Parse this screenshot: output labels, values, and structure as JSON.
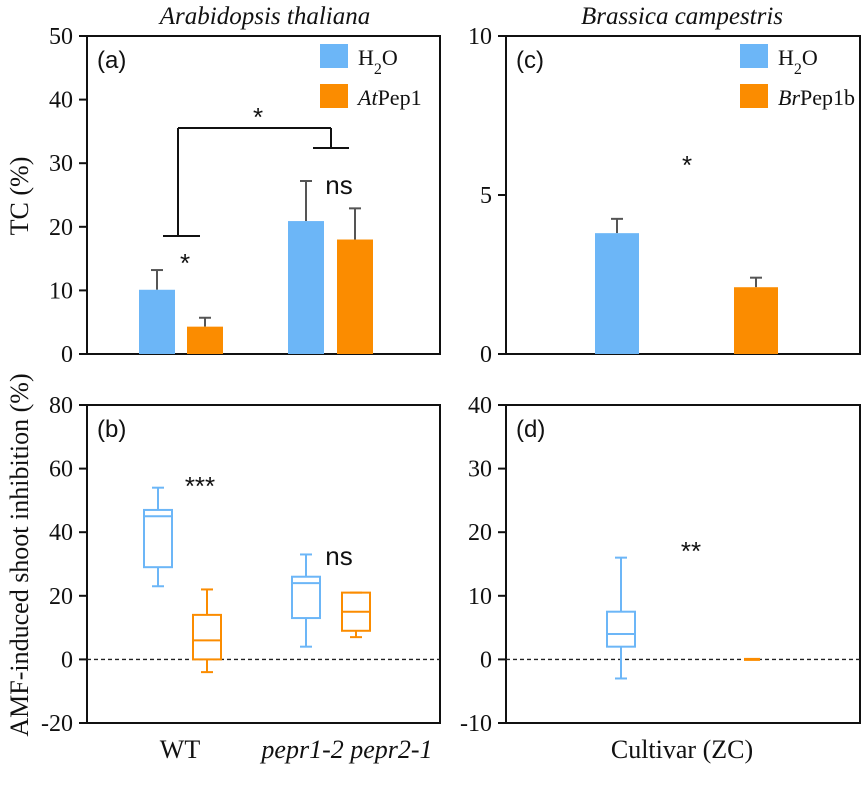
{
  "colors": {
    "control": "#6cb6f7",
    "treatment": "#fb8c00",
    "axis": "#111111",
    "error": "#555555"
  },
  "titles": {
    "left": "Arabidopsis thaliana",
    "right": "Brassica campestris"
  },
  "labels": {
    "ylabel_top": "TC (%)",
    "ylabel_bottom": "AMF-induced shoot inhibition (%)",
    "cat_wt": "WT",
    "cat_mutant": "pepr1-2 pepr2-1",
    "cat_cultivar": "Cultivar (ZC)"
  },
  "chart_data": [
    {
      "panel": "a",
      "type": "bar",
      "letter": "(a)",
      "ylim": [
        0,
        50
      ],
      "yticks": [
        "0",
        "10",
        "20",
        "30",
        "40",
        "50"
      ],
      "categories": [
        "WT",
        "pepr1-2 pepr2-1"
      ],
      "legend": {
        "control": "H2O",
        "treatment_italic": "At",
        "treatment_rest": "Pep1",
        "position": "top-right"
      },
      "series": [
        {
          "name": "H2O",
          "values": [
            10.1,
            20.9
          ],
          "errors": [
            3.1,
            6.3
          ]
        },
        {
          "name": "AtPep1",
          "values": [
            4.3,
            18.0
          ],
          "errors": [
            1.4,
            4.9
          ]
        }
      ],
      "annotations": {
        "wt": "*",
        "mutant": "ns",
        "between": "*"
      }
    },
    {
      "panel": "c",
      "type": "bar",
      "letter": "(c)",
      "ylim": [
        0,
        10
      ],
      "yticks": [
        "0",
        "5",
        "10"
      ],
      "categories": [
        "Cultivar (ZC)"
      ],
      "legend": {
        "control": "H2O",
        "treatment_italic": "Br",
        "treatment_rest": "Pep1b",
        "position": "top-right"
      },
      "series": [
        {
          "name": "H2O",
          "values": [
            3.8
          ],
          "errors": [
            0.45
          ]
        },
        {
          "name": "BrPep1b",
          "values": [
            2.1
          ],
          "errors": [
            0.3
          ]
        }
      ],
      "annotations": {
        "main": "*"
      }
    },
    {
      "panel": "b",
      "type": "box",
      "letter": "(b)",
      "ylim": [
        -20,
        80
      ],
      "yticks": [
        "-20",
        "0",
        "20",
        "40",
        "60",
        "80"
      ],
      "categories": [
        "WT",
        "pepr1-2 pepr2-1"
      ],
      "series": [
        {
          "name": "H2O",
          "boxes": [
            {
              "min": 23,
              "q1": 29,
              "median": 45,
              "q3": 47,
              "max": 54
            },
            {
              "min": 4,
              "q1": 13,
              "median": 24,
              "q3": 26,
              "max": 33
            }
          ]
        },
        {
          "name": "AtPep1",
          "boxes": [
            {
              "min": -4,
              "q1": 0,
              "median": 6,
              "q3": 14,
              "max": 22
            },
            {
              "min": 7,
              "q1": 9,
              "median": 15,
              "q3": 21,
              "max": 21
            }
          ]
        }
      ],
      "reference_line": 0,
      "annotations": {
        "wt": "***",
        "mutant": "ns"
      }
    },
    {
      "panel": "d",
      "type": "box",
      "letter": "(d)",
      "ylim": [
        -10,
        40
      ],
      "yticks": [
        "-10",
        "0",
        "10",
        "20",
        "30",
        "40"
      ],
      "categories": [
        "Cultivar (ZC)"
      ],
      "series": [
        {
          "name": "H2O",
          "boxes": [
            {
              "min": -3,
              "q1": 2,
              "median": 4,
              "q3": 7.5,
              "max": 16
            }
          ]
        },
        {
          "name": "BrPep1b",
          "boxes": [
            {
              "min": 0,
              "q1": 0,
              "median": 0,
              "q3": 0,
              "max": 0
            }
          ]
        }
      ],
      "reference_line": 0,
      "annotations": {
        "main": "**"
      }
    }
  ]
}
